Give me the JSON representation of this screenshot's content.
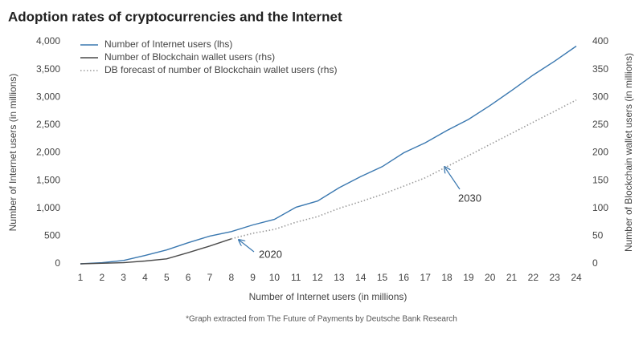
{
  "chart_data": {
    "type": "line",
    "title": "Adoption rates of cryptocurrencies and the Internet",
    "xlabel": "Number of Internet users (in millions)",
    "ylabel": "Number of Internet users (in millions)",
    "y2label": "Number of Blockchain wallet users (in millions)",
    "footnote": "*Graph extracted from The Future of Payments by Deutsche Bank Research",
    "annotations": [
      "2020",
      "2030"
    ],
    "x": [
      1,
      2,
      3,
      4,
      5,
      6,
      7,
      8,
      9,
      10,
      11,
      12,
      13,
      14,
      15,
      16,
      17,
      18,
      19,
      20,
      21,
      22,
      23,
      24
    ],
    "xlim": [
      1,
      24
    ],
    "ylim": [
      0,
      4000
    ],
    "yticks": [
      0,
      500,
      {
        "value": 1000,
        "label": "1,000"
      },
      {
        "value": 1500,
        "label": "1,500"
      },
      {
        "value": 2000,
        "label": "2,000"
      },
      {
        "value": 2500,
        "label": "2,500"
      },
      {
        "value": 3000,
        "label": "3,000"
      },
      {
        "value": 3500,
        "label": "3,500"
      },
      {
        "value": 4000,
        "label": "4,000"
      }
    ],
    "y2lim": [
      0,
      400
    ],
    "y2ticks": [
      0,
      50,
      100,
      150,
      200,
      250,
      300,
      350,
      400
    ],
    "legend": "upper left",
    "series": [
      {
        "name": "Number of Internet users (lhs)",
        "color": "#3a78b0",
        "style": "solid",
        "values": [
          0,
          20,
          60,
          150,
          250,
          380,
          500,
          580,
          700,
          800,
          1020,
          1130,
          1370,
          1570,
          1750,
          2000,
          2180,
          2400,
          2600,
          2850,
          3120,
          3400,
          3650,
          3920
        ]
      },
      {
        "name": "Number of Blockchain wallet users (rhs)",
        "color": "#4a4a4a",
        "style": "solid",
        "axis": "y2",
        "values": [
          0,
          1,
          2,
          5,
          9,
          20,
          32,
          45,
          null,
          null,
          null,
          null,
          null,
          null,
          null,
          null,
          null,
          null,
          null,
          null,
          null,
          null,
          null,
          null
        ]
      },
      {
        "name": "DB forecast of number of Blockchain wallet users (rhs)",
        "color": "#9a9a9a",
        "style": "dotted",
        "axis": "y2",
        "values": [
          null,
          null,
          null,
          null,
          null,
          null,
          null,
          45,
          55,
          62,
          75,
          85,
          100,
          112,
          125,
          140,
          155,
          175,
          195,
          215,
          235,
          255,
          275,
          295
        ]
      }
    ]
  }
}
